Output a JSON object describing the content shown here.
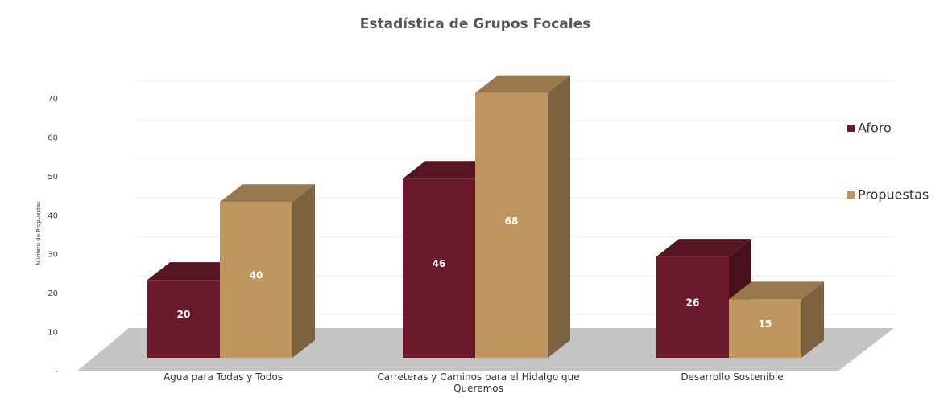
{
  "chart_data": {
    "type": "bar3d",
    "title": "Estadística de Grupos Focales",
    "y_label": "Número de Propuestas",
    "categories": [
      "Agua para Todas y Todos",
      "Carreteras y Caminos para el Hidalgo que Queremos",
      "Desarrollo Sostenible"
    ],
    "series": [
      {
        "name": "Aforo",
        "color": "#6b1a2c",
        "values": [
          20,
          46,
          26
        ]
      },
      {
        "name": "Propuestas",
        "color": "#bf9660",
        "values": [
          40,
          68,
          15
        ]
      }
    ],
    "ylim": [
      0,
      70
    ],
    "yticks": [
      {
        "value": 0,
        "label": "-"
      },
      10,
      20,
      30,
      40,
      50,
      60,
      70
    ],
    "grid": true,
    "legend": "right"
  }
}
